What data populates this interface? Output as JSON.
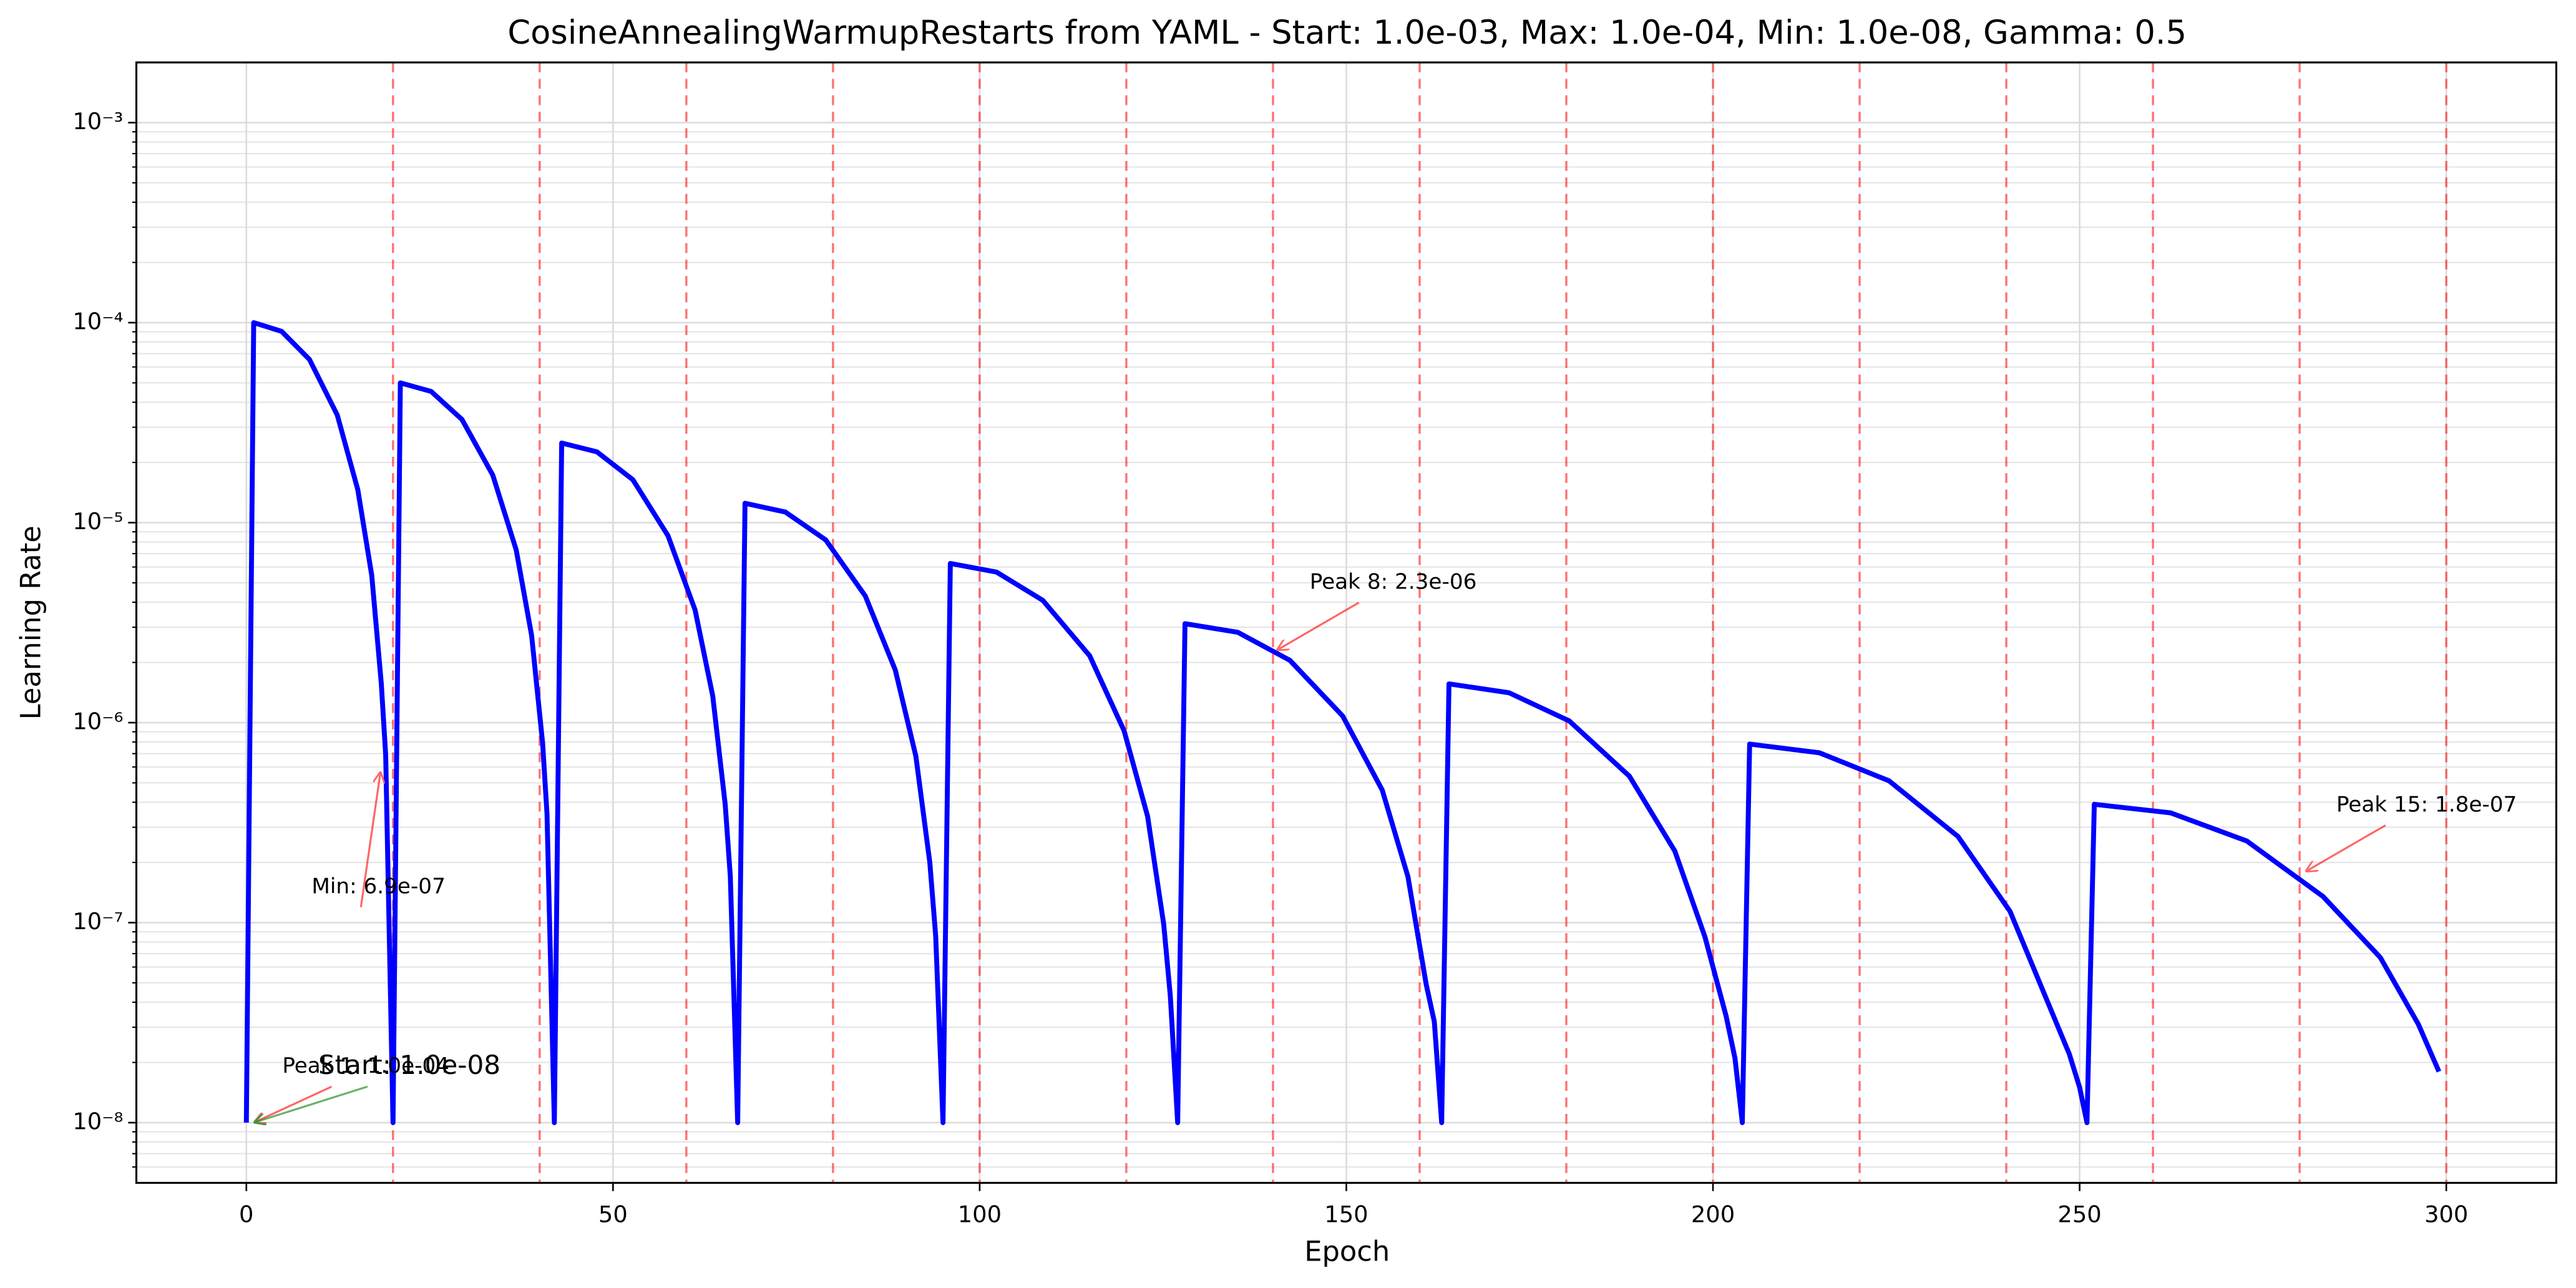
{
  "chart_data": {
    "type": "line",
    "title": "CosineAnnealingWarmupRestarts from YAML - Start: 1.0e-03, Max: 1.0e-04, Min: 1.0e-08, Gamma: 0.5",
    "x_label": "Epoch",
    "y_label": "Learning Rate",
    "log_y": true,
    "grid": true,
    "color": "#0000ff",
    "x": [
      0,
      1,
      4.8,
      8.6,
      12.4,
      15.2,
      17.1,
      18.4,
      19,
      20,
      21,
      25.2,
      29.4,
      33.6,
      36.8,
      38.9,
      40.4,
      41,
      42,
      43,
      47.8,
      52.7,
      57.5,
      61.2,
      63.6,
      65.3,
      66,
      67,
      68,
      73.5,
      79,
      84.4,
      88.5,
      91.3,
      93.2,
      94,
      95,
      96,
      102.3,
      108.6,
      115,
      119.7,
      122.9,
      125.1,
      126,
      127,
      128,
      135.2,
      142.3,
      149.5,
      154.9,
      158.4,
      160.9,
      162,
      163,
      164,
      172.2,
      180.4,
      188.6,
      194.8,
      198.9,
      201.8,
      203,
      204,
      205,
      214.5,
      224,
      233.4,
      240.5,
      245.3,
      248.6,
      250,
      251,
      252,
      262.4,
      272.8,
      283.2,
      291,
      296.2,
      299
    ],
    "values": [
      1e-08,
      0.0001,
      9.05e-05,
      6.55e-05,
      3.45e-05,
      1.46e-05,
      5.45e-06,
      1.57e-06,
      6.9e-07,
      1e-08,
      5e-05,
      4.53e-05,
      3.28e-05,
      1.73e-05,
      7.3e-06,
      2.73e-06,
      7.9e-07,
      3.5e-07,
      1e-08,
      2.5e-05,
      2.26e-05,
      1.64e-05,
      8.6e-06,
      3.65e-06,
      1.36e-06,
      3.9e-07,
      1.7e-07,
      1e-08,
      1.25e-05,
      1.13e-05,
      8.2e-06,
      4.3e-06,
      1.83e-06,
      6.8e-07,
      2e-07,
      8.6e-08,
      1e-08,
      6.25e-06,
      5.66e-06,
      4.09e-06,
      2.16e-06,
      9.1e-07,
      3.4e-07,
      9.8e-08,
      4.3e-08,
      1e-08,
      3.125e-06,
      2.83e-06,
      2.05e-06,
      1.08e-06,
      4.6e-07,
      1.7e-07,
      4.9e-08,
      3.2e-08,
      1e-08,
      1.5625e-06,
      1.41e-06,
      1.02e-06,
      5.4e-07,
      2.28e-07,
      8.5e-08,
      3.4e-08,
      2.1e-08,
      1e-08,
      7.8125e-07,
      7.07e-07,
      5.12e-07,
      2.7e-07,
      1.14e-07,
      4.3e-08,
      2.2e-08,
      1.5e-08,
      1e-08,
      3.90625e-07,
      3.54e-07,
      2.56e-07,
      1.35e-07,
      6.7e-08,
      3.1e-08,
      1.8e-08
    ],
    "xlim": [
      -15,
      315
    ],
    "ylim": [
      5e-09,
      0.002
    ],
    "xticks": [
      0,
      50,
      100,
      150,
      200,
      250,
      300
    ],
    "yticks": [
      {
        "value": 1e-08,
        "label": "10⁻⁸"
      },
      {
        "value": 1e-07,
        "label": "10⁻⁷"
      },
      {
        "value": 1e-06,
        "label": "10⁻⁶"
      },
      {
        "value": 1e-05,
        "label": "10⁻⁵"
      },
      {
        "value": 0.0001,
        "label": "10⁻⁴"
      },
      {
        "value": 0.001,
        "label": "10⁻³"
      }
    ],
    "yminorticks": [
      6e-09,
      7e-09,
      8e-09,
      9e-09,
      2e-08,
      3e-08,
      4e-08,
      5e-08,
      6e-08,
      7e-08,
      8e-08,
      9e-08,
      2e-07,
      3e-07,
      4e-07,
      5e-07,
      6e-07,
      7e-07,
      8e-07,
      9e-07,
      2e-06,
      3e-06,
      4e-06,
      5e-06,
      6e-06,
      7e-06,
      8e-06,
      9e-06,
      2e-05,
      3e-05,
      4e-05,
      5e-05,
      6e-05,
      7e-05,
      8e-05,
      9e-05,
      0.0002,
      0.0003,
      0.0004,
      0.0005,
      0.0006,
      0.0007,
      0.0008,
      0.0009
    ],
    "vlines": [
      20,
      40,
      60,
      80,
      100,
      120,
      140,
      160,
      180,
      200,
      220,
      240,
      260,
      280,
      300
    ],
    "vline_color": "#ff0000",
    "annotations": [
      {
        "text": "Peak 1: 1.0e-04",
        "xy": [
          1,
          1e-08
        ],
        "xytext": [
          4.9,
          1.9e-08
        ],
        "color": "#ff0000"
      },
      {
        "text": "Start: 1.0e-08",
        "xy": [
          1,
          1e-08
        ],
        "xytext": [
          9.8,
          1.9e-08
        ],
        "color": "#008000"
      },
      {
        "text": "Min: 6.9e-07",
        "xy": [
          18.3,
          5.7e-07
        ],
        "xytext": [
          8.9,
          1.5e-07
        ],
        "color": "#ff0000"
      },
      {
        "text": "Peak 8: 2.3e-06",
        "xy": [
          140.5,
          2.3e-06
        ],
        "xytext": [
          145,
          5e-06
        ],
        "color": "#ff0000"
      },
      {
        "text": "Peak 15: 1.8e-07",
        "xy": [
          280.8,
          1.8e-07
        ],
        "xytext": [
          285,
          3.85e-07
        ],
        "color": "#ff0000"
      }
    ]
  }
}
